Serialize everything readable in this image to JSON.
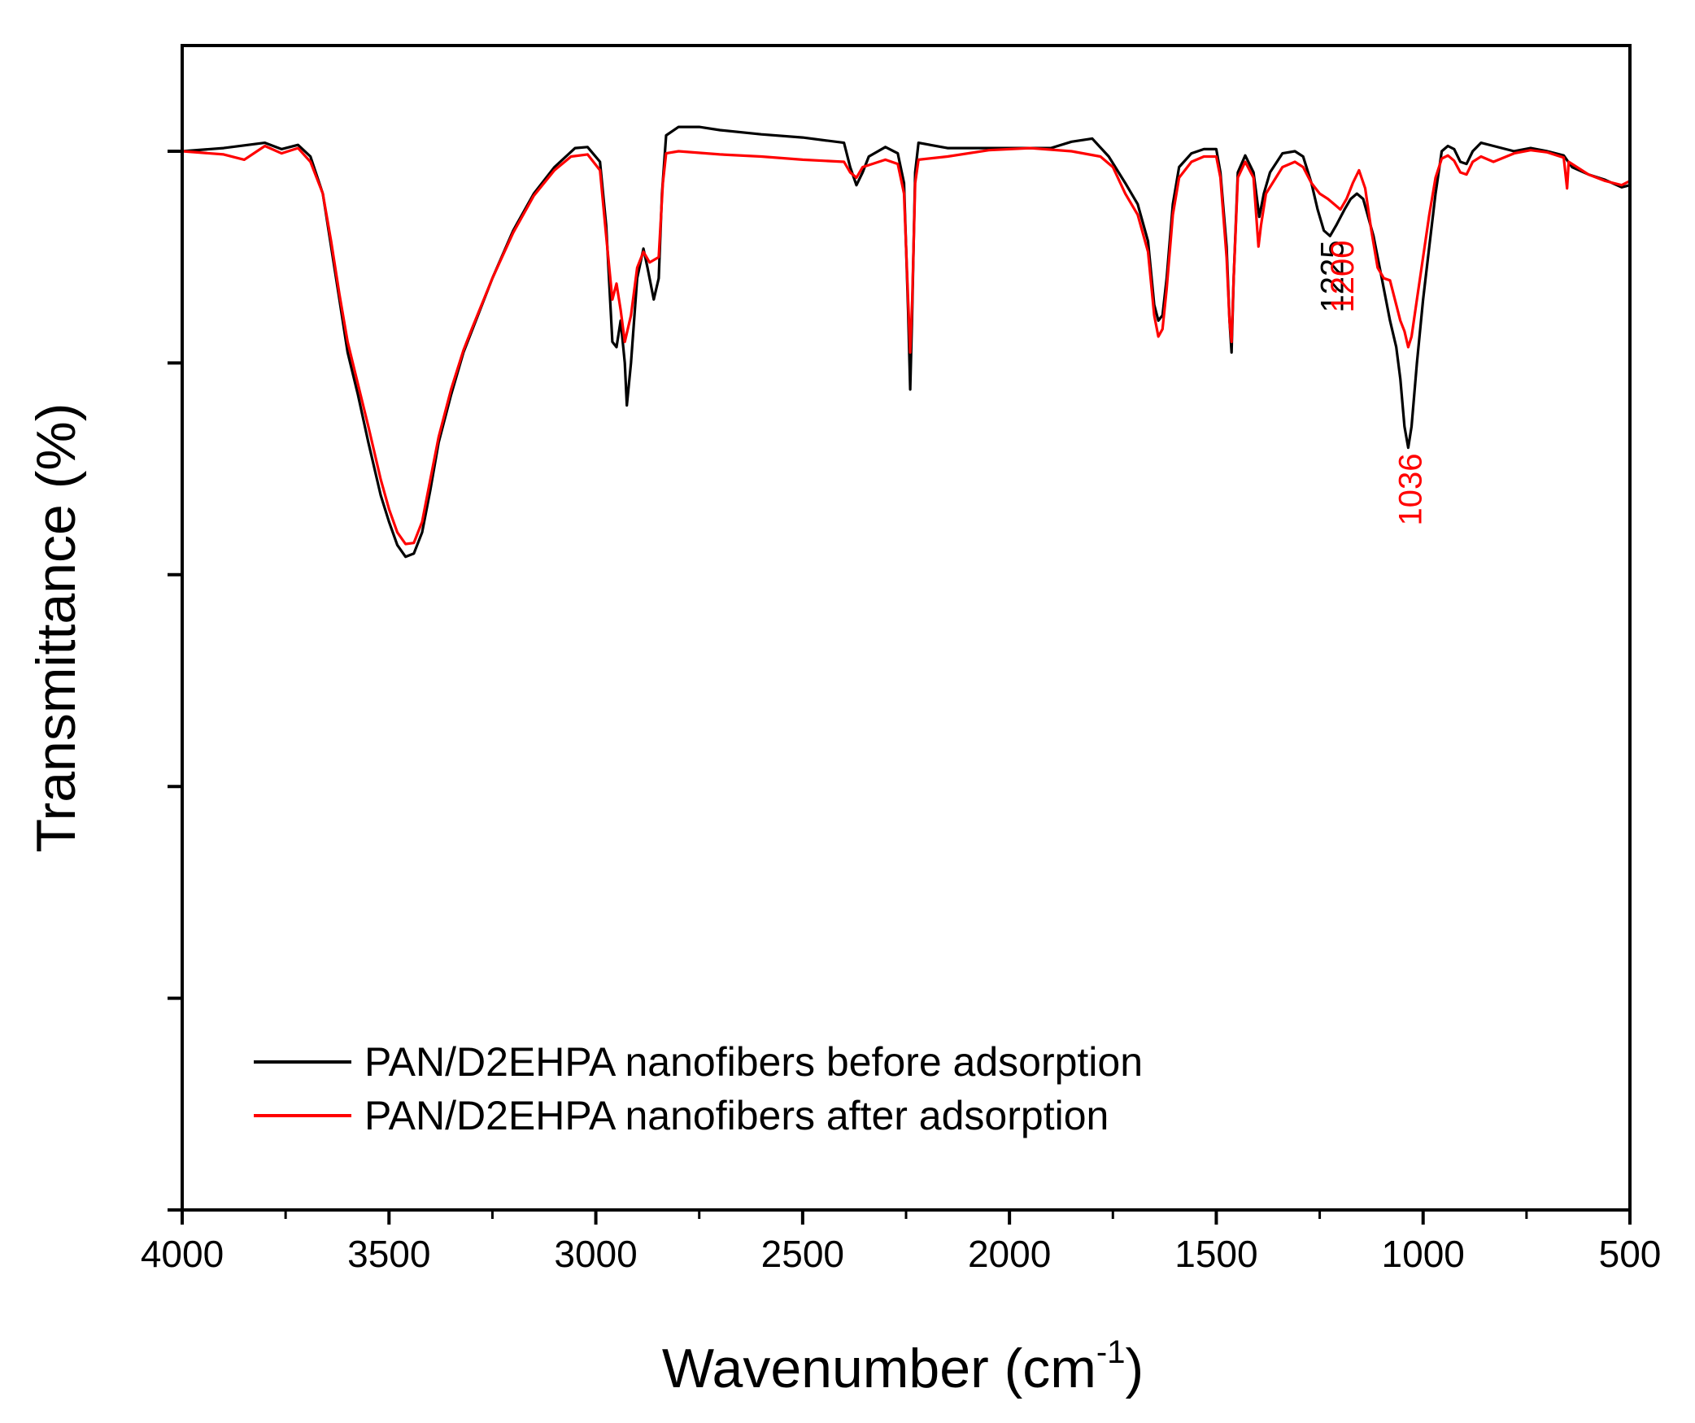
{
  "chart_data": {
    "type": "line",
    "title": "",
    "xlabel": "Wavenumber (cm",
    "xlabel_superscript": "-1",
    "xlabel_suffix": ")",
    "ylabel": "Transmittance (%)",
    "xlim": [
      4000,
      500
    ],
    "ylim": [
      0,
      100
    ],
    "x_ticks": [
      4000,
      3500,
      3000,
      2500,
      2000,
      1500,
      1000,
      500
    ],
    "x_tick_labels": [
      "4000",
      "3500",
      "3000",
      "2500",
      "2000",
      "1500",
      "1000",
      "500"
    ],
    "x_minor_step": 250,
    "y_ticks": [
      0,
      20,
      40,
      60,
      80,
      100
    ],
    "y_tick_labels_shown": false,
    "grid": false,
    "legend_position": "bottom-left",
    "series": [
      {
        "name": "PAN/D2EHPA nanofibers before adsorption",
        "color": "#000000",
        "points": [
          [
            4000,
            100
          ],
          [
            3900,
            100.3
          ],
          [
            3800,
            100.8
          ],
          [
            3760,
            100.2
          ],
          [
            3720,
            100.6
          ],
          [
            3690,
            99.5
          ],
          [
            3660,
            96
          ],
          [
            3640,
            91
          ],
          [
            3620,
            86
          ],
          [
            3600,
            81
          ],
          [
            3575,
            77
          ],
          [
            3550,
            72.5
          ],
          [
            3520,
            67.5
          ],
          [
            3500,
            65
          ],
          [
            3480,
            62.8
          ],
          [
            3460,
            61.7
          ],
          [
            3440,
            62
          ],
          [
            3420,
            64
          ],
          [
            3400,
            68
          ],
          [
            3380,
            72.5
          ],
          [
            3350,
            77
          ],
          [
            3320,
            81
          ],
          [
            3300,
            83
          ],
          [
            3250,
            88
          ],
          [
            3200,
            92.5
          ],
          [
            3150,
            96
          ],
          [
            3100,
            98.5
          ],
          [
            3050,
            100.3
          ],
          [
            3020,
            100.4
          ],
          [
            2990,
            99
          ],
          [
            2975,
            93
          ],
          [
            2960,
            82
          ],
          [
            2950,
            81.5
          ],
          [
            2940,
            84
          ],
          [
            2930,
            80
          ],
          [
            2925,
            76
          ],
          [
            2915,
            80
          ],
          [
            2900,
            88
          ],
          [
            2885,
            90.8
          ],
          [
            2875,
            89
          ],
          [
            2860,
            86
          ],
          [
            2848,
            88
          ],
          [
            2840,
            96
          ],
          [
            2830,
            101.5
          ],
          [
            2800,
            102.3
          ],
          [
            2750,
            102.3
          ],
          [
            2700,
            102
          ],
          [
            2600,
            101.6
          ],
          [
            2500,
            101.3
          ],
          [
            2400,
            100.8
          ],
          [
            2385,
            98.5
          ],
          [
            2370,
            96.8
          ],
          [
            2355,
            98
          ],
          [
            2340,
            99.5
          ],
          [
            2300,
            100.4
          ],
          [
            2270,
            99.8
          ],
          [
            2255,
            97
          ],
          [
            2245,
            85
          ],
          [
            2240,
            77.5
          ],
          [
            2235,
            85
          ],
          [
            2228,
            98
          ],
          [
            2220,
            100.8
          ],
          [
            2150,
            100.3
          ],
          [
            2000,
            100.3
          ],
          [
            1900,
            100.3
          ],
          [
            1850,
            100.9
          ],
          [
            1800,
            101.2
          ],
          [
            1760,
            99.5
          ],
          [
            1720,
            97
          ],
          [
            1690,
            95
          ],
          [
            1665,
            91.5
          ],
          [
            1650,
            85.5
          ],
          [
            1640,
            84
          ],
          [
            1630,
            84.5
          ],
          [
            1620,
            88
          ],
          [
            1605,
            95
          ],
          [
            1590,
            98.5
          ],
          [
            1560,
            99.8
          ],
          [
            1530,
            100.2
          ],
          [
            1500,
            100.2
          ],
          [
            1490,
            98
          ],
          [
            1475,
            91
          ],
          [
            1468,
            84
          ],
          [
            1463,
            81
          ],
          [
            1458,
            88
          ],
          [
            1448,
            98
          ],
          [
            1430,
            99.6
          ],
          [
            1410,
            98
          ],
          [
            1396,
            93.8
          ],
          [
            1385,
            96
          ],
          [
            1370,
            98
          ],
          [
            1340,
            99.8
          ],
          [
            1310,
            100
          ],
          [
            1290,
            99.5
          ],
          [
            1270,
            97
          ],
          [
            1255,
            94.5
          ],
          [
            1240,
            92.5
          ],
          [
            1225,
            92
          ],
          [
            1210,
            93
          ],
          [
            1190,
            94.5
          ],
          [
            1175,
            95.5
          ],
          [
            1160,
            96
          ],
          [
            1145,
            95.5
          ],
          [
            1120,
            92
          ],
          [
            1100,
            88
          ],
          [
            1080,
            84
          ],
          [
            1065,
            81.5
          ],
          [
            1055,
            78.5
          ],
          [
            1045,
            74
          ],
          [
            1036,
            72
          ],
          [
            1028,
            74
          ],
          [
            1015,
            80
          ],
          [
            1000,
            86
          ],
          [
            985,
            91
          ],
          [
            970,
            96
          ],
          [
            955,
            100
          ],
          [
            940,
            100.5
          ],
          [
            925,
            100.2
          ],
          [
            910,
            99
          ],
          [
            895,
            98.8
          ],
          [
            880,
            100
          ],
          [
            860,
            100.8
          ],
          [
            830,
            100.5
          ],
          [
            780,
            100
          ],
          [
            740,
            100.3
          ],
          [
            700,
            100
          ],
          [
            660,
            99.6
          ],
          [
            640,
            98.5
          ],
          [
            600,
            97.8
          ],
          [
            560,
            97.3
          ],
          [
            520,
            96.6
          ],
          [
            500,
            96.8
          ]
        ]
      },
      {
        "name": "PAN/D2EHPA nanofibers after adsorption",
        "color": "#ff0000",
        "points": [
          [
            4000,
            100
          ],
          [
            3900,
            99.7
          ],
          [
            3850,
            99.2
          ],
          [
            3800,
            100.5
          ],
          [
            3760,
            99.8
          ],
          [
            3720,
            100.3
          ],
          [
            3690,
            99
          ],
          [
            3660,
            96
          ],
          [
            3640,
            91.5
          ],
          [
            3620,
            86.5
          ],
          [
            3600,
            82
          ],
          [
            3575,
            78
          ],
          [
            3550,
            74
          ],
          [
            3520,
            69
          ],
          [
            3500,
            66.2
          ],
          [
            3480,
            64
          ],
          [
            3460,
            62.9
          ],
          [
            3440,
            63
          ],
          [
            3420,
            65
          ],
          [
            3400,
            69
          ],
          [
            3380,
            73
          ],
          [
            3350,
            77.5
          ],
          [
            3320,
            81.2
          ],
          [
            3300,
            83.2
          ],
          [
            3250,
            88
          ],
          [
            3200,
            92.3
          ],
          [
            3150,
            95.8
          ],
          [
            3100,
            98.2
          ],
          [
            3060,
            99.5
          ],
          [
            3020,
            99.7
          ],
          [
            2990,
            98.2
          ],
          [
            2975,
            92
          ],
          [
            2960,
            86
          ],
          [
            2950,
            87.5
          ],
          [
            2940,
            85
          ],
          [
            2930,
            82
          ],
          [
            2915,
            84.5
          ],
          [
            2900,
            89
          ],
          [
            2885,
            90.5
          ],
          [
            2870,
            89.5
          ],
          [
            2848,
            90
          ],
          [
            2838,
            97
          ],
          [
            2830,
            99.8
          ],
          [
            2800,
            100
          ],
          [
            2700,
            99.7
          ],
          [
            2600,
            99.5
          ],
          [
            2500,
            99.2
          ],
          [
            2400,
            99
          ],
          [
            2385,
            98
          ],
          [
            2370,
            97.5
          ],
          [
            2355,
            98.5
          ],
          [
            2300,
            99.2
          ],
          [
            2270,
            98.8
          ],
          [
            2255,
            96
          ],
          [
            2245,
            86
          ],
          [
            2240,
            81
          ],
          [
            2235,
            86
          ],
          [
            2228,
            97
          ],
          [
            2220,
            99.2
          ],
          [
            2150,
            99.5
          ],
          [
            2050,
            100.1
          ],
          [
            1950,
            100.3
          ],
          [
            1850,
            100
          ],
          [
            1780,
            99.5
          ],
          [
            1750,
            98.5
          ],
          [
            1720,
            96
          ],
          [
            1690,
            94
          ],
          [
            1665,
            90.5
          ],
          [
            1650,
            84.5
          ],
          [
            1640,
            82.5
          ],
          [
            1630,
            83.2
          ],
          [
            1620,
            87
          ],
          [
            1605,
            94
          ],
          [
            1590,
            97.5
          ],
          [
            1560,
            99
          ],
          [
            1530,
            99.5
          ],
          [
            1500,
            99.5
          ],
          [
            1490,
            97.5
          ],
          [
            1475,
            90
          ],
          [
            1468,
            84
          ],
          [
            1463,
            82
          ],
          [
            1458,
            88
          ],
          [
            1448,
            97.5
          ],
          [
            1430,
            99
          ],
          [
            1410,
            97.5
          ],
          [
            1398,
            91
          ],
          [
            1392,
            93
          ],
          [
            1380,
            96
          ],
          [
            1340,
            98.5
          ],
          [
            1310,
            99
          ],
          [
            1290,
            98.5
          ],
          [
            1270,
            97
          ],
          [
            1250,
            96
          ],
          [
            1230,
            95.5
          ],
          [
            1215,
            95
          ],
          [
            1200,
            94.5
          ],
          [
            1185,
            95.5
          ],
          [
            1170,
            97
          ],
          [
            1155,
            98.2
          ],
          [
            1140,
            96.5
          ],
          [
            1125,
            92.5
          ],
          [
            1110,
            89
          ],
          [
            1095,
            88
          ],
          [
            1080,
            87.8
          ],
          [
            1065,
            85.5
          ],
          [
            1055,
            84
          ],
          [
            1045,
            83
          ],
          [
            1036,
            81.5
          ],
          [
            1028,
            82.5
          ],
          [
            1015,
            86
          ],
          [
            1000,
            90
          ],
          [
            985,
            94
          ],
          [
            970,
            97.5
          ],
          [
            955,
            99.3
          ],
          [
            940,
            99.6
          ],
          [
            925,
            99.1
          ],
          [
            910,
            98
          ],
          [
            895,
            97.8
          ],
          [
            880,
            99
          ],
          [
            860,
            99.5
          ],
          [
            830,
            99
          ],
          [
            780,
            99.8
          ],
          [
            740,
            100.1
          ],
          [
            700,
            99.9
          ],
          [
            660,
            99.4
          ],
          [
            652,
            96.5
          ],
          [
            648,
            99
          ],
          [
            600,
            97.8
          ],
          [
            560,
            97.2
          ],
          [
            520,
            96.8
          ],
          [
            500,
            97.2
          ]
        ]
      }
    ],
    "annotations": [
      {
        "text": "1225",
        "x": 1225,
        "color": "#000000"
      },
      {
        "text": "1200",
        "x": 1200,
        "color": "#ff0000"
      },
      {
        "text": "1036",
        "x": 1036,
        "color": "#ff0000"
      }
    ]
  }
}
